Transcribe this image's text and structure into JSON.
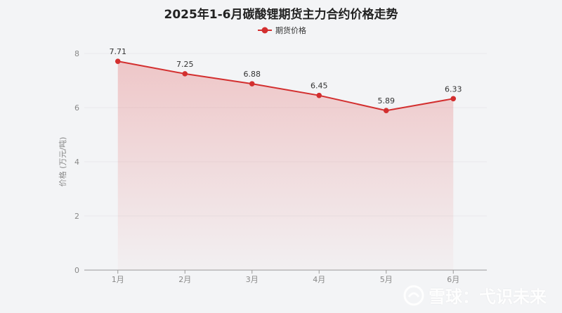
{
  "chart_data": {
    "type": "line",
    "title": "2025年1-6月碳酸锂期货主力合约价格走势",
    "categories": [
      "1月",
      "2月",
      "3月",
      "4月",
      "5月",
      "6月"
    ],
    "series": [
      {
        "name": "期货价格",
        "values": [
          7.71,
          7.25,
          6.88,
          6.45,
          5.89,
          6.33
        ]
      }
    ],
    "ylabel": "价格 (万元/吨)",
    "ylim": [
      0,
      8
    ],
    "yticks": [
      0,
      2,
      4,
      6,
      8
    ],
    "grid": true,
    "legend_position": "top-center",
    "colors": {
      "line": "#d32f2f",
      "area": "#e57373"
    }
  },
  "watermark": {
    "text": "雪球：弋识未来",
    "icon": "snowball-logo-icon"
  }
}
